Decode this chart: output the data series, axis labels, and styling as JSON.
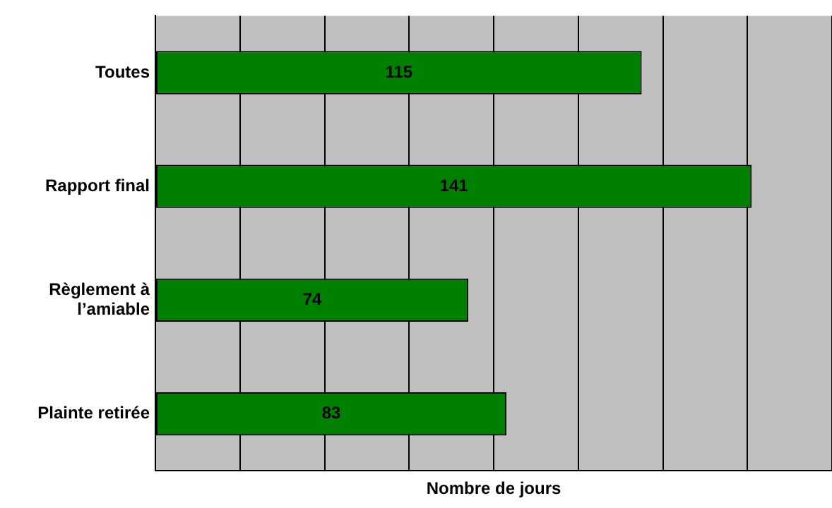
{
  "chart_data": {
    "type": "bar",
    "orientation": "horizontal",
    "xlabel": "Nombre de jours",
    "categories": [
      "Toutes",
      "Rapport final",
      "Règlement à l’amiable",
      "Plainte retirée"
    ],
    "values": [
      115,
      141,
      74,
      83
    ],
    "color": "#008000",
    "data_labels": true,
    "xlim": [
      0,
      160
    ],
    "xticks": [
      {
        "value": 0,
        "label": null
      },
      {
        "value": 20,
        "label": null
      },
      {
        "value": 40,
        "label": null
      },
      {
        "value": 60,
        "label": null
      },
      {
        "value": 80,
        "label": null
      },
      {
        "value": 100,
        "label": null
      },
      {
        "value": 120,
        "label": null
      },
      {
        "value": 140,
        "label": null
      },
      {
        "value": 160,
        "label": null
      }
    ],
    "grid": "x",
    "tick_labels": "y"
  }
}
